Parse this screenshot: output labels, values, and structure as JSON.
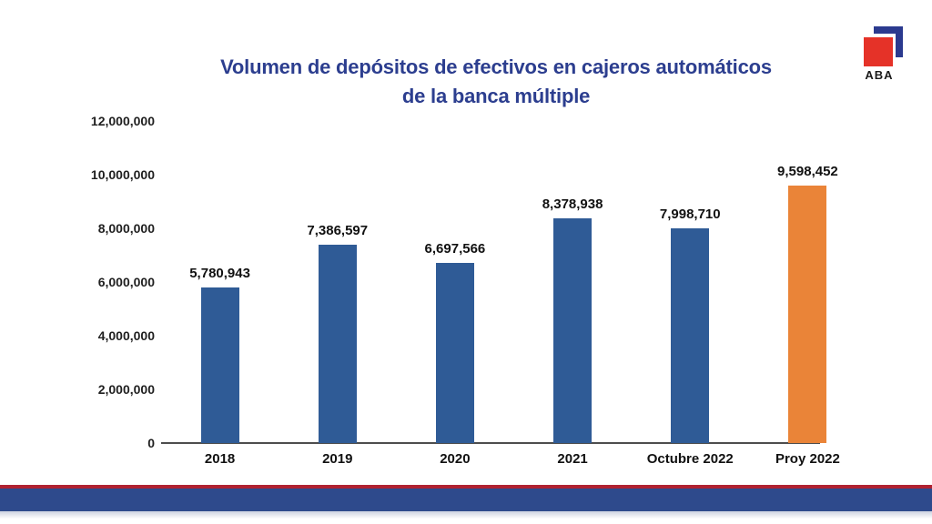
{
  "logo": {
    "text": "ABA",
    "red_color": "#E53228",
    "blue_color": "#2B3A8F"
  },
  "title": {
    "line1": "Volumen de depósitos de efectivos en cajeros automáticos",
    "line2": "de la banca múltiple",
    "color": "#2C3E8F"
  },
  "chart_data": {
    "type": "bar",
    "title": "Volumen de depósitos de efectivos en cajeros automáticos de la banca múltiple",
    "categories": [
      "2018",
      "2019",
      "2020",
      "2021",
      "Octubre 2022",
      "Proy 2022"
    ],
    "values": [
      5780943,
      7386597,
      6697566,
      8378938,
      7998710,
      9598452
    ],
    "value_labels": [
      "5,780,943",
      "7,386,597",
      "6,697,566",
      "8,378,938",
      "7,998,710",
      "9,598,452"
    ],
    "bar_colors": [
      "#2F5B96",
      "#2F5B96",
      "#2F5B96",
      "#2F5B96",
      "#2F5B96",
      "#EA8438"
    ],
    "xlabel": "",
    "ylabel": "",
    "ylim": [
      0,
      12000000
    ],
    "yticks": [
      0,
      2000000,
      4000000,
      6000000,
      8000000,
      10000000,
      12000000
    ],
    "ytick_labels": [
      "0",
      "2,000,000",
      "4,000,000",
      "6,000,000",
      "8,000,000",
      "10,000,000",
      "12,000,000"
    ],
    "grid": false,
    "legend": false,
    "highlight_color": "#EA8438",
    "series_color": "#2F5B96"
  },
  "footer": {
    "red_bar_color": "#B02231",
    "blue_bar_color": "#2E4A8C"
  }
}
